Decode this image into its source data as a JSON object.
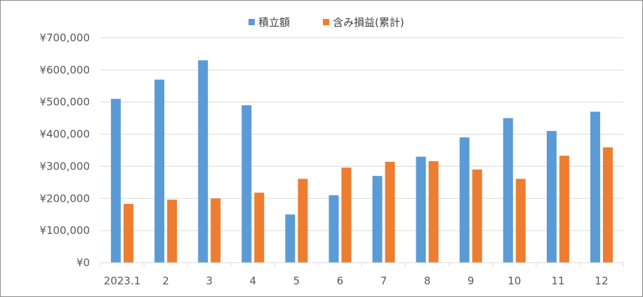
{
  "chart_data": {
    "type": "bar",
    "title": "",
    "xlabel": "",
    "ylabel": "",
    "categories": [
      "2023.1",
      "2",
      "3",
      "4",
      "5",
      "6",
      "7",
      "8",
      "9",
      "10",
      "11",
      "12"
    ],
    "series": [
      {
        "name": "積立額",
        "color": "#5B9BD5",
        "values": [
          510000,
          570000,
          630000,
          490000,
          150000,
          210000,
          270000,
          330000,
          390000,
          450000,
          410000,
          470000
        ]
      },
      {
        "name": "含み損益(累計)",
        "color": "#ED7D31",
        "values": [
          183000,
          196000,
          200000,
          218000,
          261000,
          296000,
          314000,
          316000,
          290000,
          261000,
          333000,
          359000
        ]
      }
    ],
    "ylim": [
      0,
      700000
    ],
    "yticks": [
      "¥0",
      "¥100,000",
      "¥200,000",
      "¥300,000",
      "¥400,000",
      "¥500,000",
      "¥600,000",
      "¥700,000"
    ],
    "grid": true,
    "legend_position": "top-center",
    "gridline_color": "#D9D9D9"
  }
}
